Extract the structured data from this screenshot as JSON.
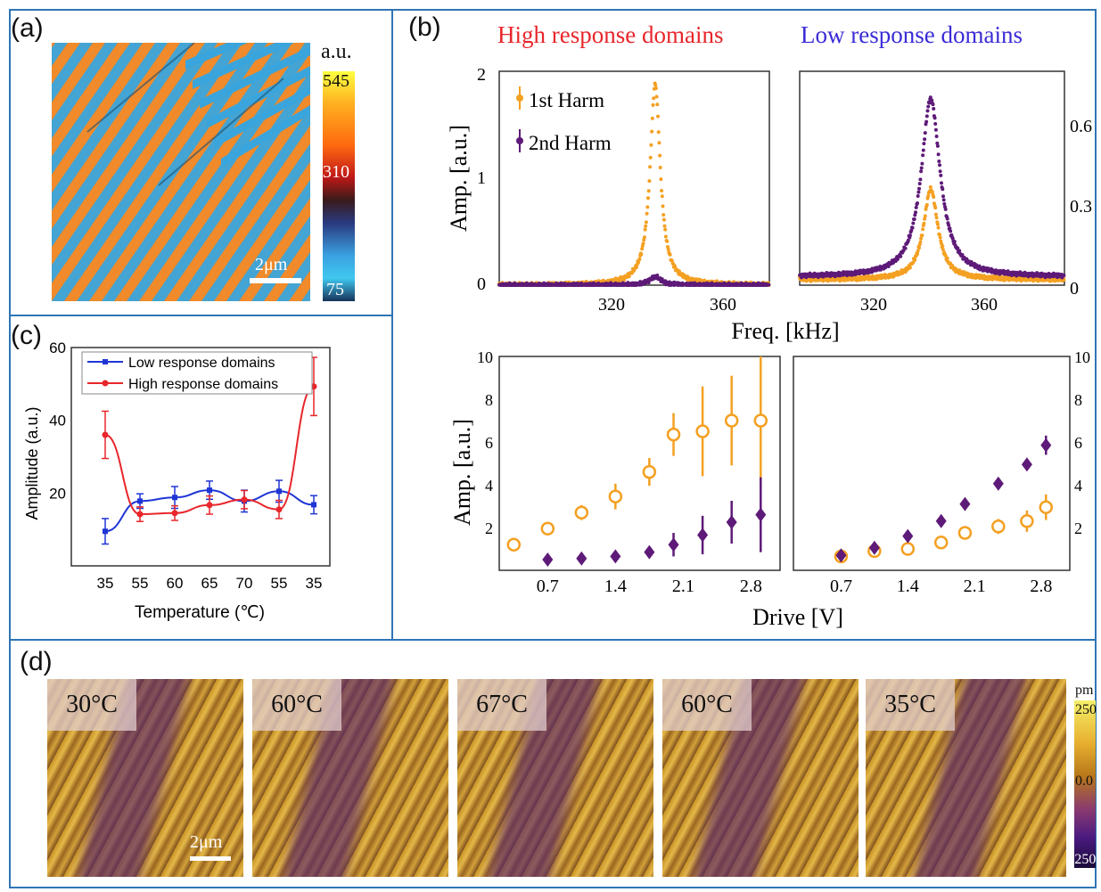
{
  "panel_labels": {
    "a": "(a)",
    "b": "(b)",
    "c": "(c)",
    "d": "(d)"
  },
  "panel_a": {
    "colorbar": {
      "unit": "a.u.",
      "max": "545",
      "mid": "310",
      "min": "75"
    },
    "scalebar": "2μm",
    "colors": {
      "domain_blue": "#3aa5dc",
      "domain_orange": "#f08a2a"
    }
  },
  "panel_b": {
    "title_high": "High response domains",
    "title_low": "Low response domains",
    "colors": {
      "high_title": "#e8262b",
      "low_title": "#3a2bd6",
      "harm1": "#f4a022",
      "harm2": "#5e1a78"
    },
    "legend": [
      "1st  Harm",
      "2nd Harm"
    ],
    "top_xlabel": "Freq. [kHz]",
    "top_ylabel": "Amp. [a.u.]",
    "top_left_yticks": [
      "2",
      "1",
      "0"
    ],
    "top_right_yticks": [
      "0.6",
      "0.3",
      "0"
    ],
    "top_xticks": [
      "320",
      "360"
    ],
    "bottom_xlabel": "Drive [V]",
    "bottom_ylabel": "Amp. [a.u.]",
    "bottom_yticks": [
      "10",
      "8",
      "6",
      "4",
      "2"
    ],
    "bottom_xticks": [
      "0.7",
      "1.4",
      "2.1",
      "2.8"
    ]
  },
  "panel_c": {
    "ylabel": "Amplitude (a.u.)",
    "xlabel": "Temperature (℃)",
    "legend": [
      "Low response domains",
      "High response domains"
    ],
    "colors": {
      "low": "#1f35d6",
      "high": "#e8262b"
    }
  },
  "panel_d": {
    "temps": [
      "30°C",
      "60°C",
      "67°C",
      "60°C",
      "35°C"
    ],
    "scalebar": "2μm",
    "colorbar": {
      "unit": "pm",
      "max": "250",
      "mid": "0.0",
      "min": "-250"
    }
  },
  "chart_data": [
    {
      "type": "scatter",
      "panel": "b-top-left",
      "title": "High response domains",
      "xlabel": "Freq. [kHz]",
      "ylabel": "Amp. [a.u.]",
      "xlim": [
        283,
        380
      ],
      "ylim": [
        0,
        2
      ],
      "xticks": [
        320,
        360
      ],
      "yticks": [
        0,
        1,
        2
      ],
      "series": [
        {
          "name": "1st  Harm",
          "peak_x": 339,
          "peak_y": 1.88,
          "baseline": 0.0
        },
        {
          "name": "2nd Harm",
          "peak_x": 339,
          "peak_y": 0.08,
          "baseline": 0.0
        }
      ]
    },
    {
      "type": "scatter",
      "panel": "b-top-right",
      "title": "Low response domains",
      "xlabel": "Freq. [kHz]",
      "xlim": [
        283,
        380
      ],
      "ylim": [
        0,
        0.78
      ],
      "xticks": [
        320,
        360
      ],
      "yticks": [
        0,
        0.3,
        0.6
      ],
      "series": [
        {
          "peak_x": 331,
          "peak_y": 0.35,
          "baseline": 0.02
        },
        {
          "peak_x": 331,
          "peak_y": 0.68,
          "baseline": 0.03
        }
      ]
    },
    {
      "type": "scatter",
      "panel": "b-bottom-left",
      "xlabel": "Drive [V]",
      "ylabel": "Amp. [a.u.]",
      "xlim": [
        0.2,
        3.1
      ],
      "ylim": [
        0,
        10
      ],
      "xticks": [
        0.7,
        1.4,
        2.1,
        2.8
      ],
      "yticks": [
        2,
        4,
        6,
        8,
        10
      ],
      "series": [
        {
          "x": [
            0.35,
            0.7,
            1.05,
            1.4,
            1.75,
            2.0,
            2.3,
            2.6,
            2.9
          ],
          "y": [
            1.2,
            1.95,
            2.7,
            3.45,
            4.6,
            6.35,
            6.5,
            7.0,
            7.0
          ],
          "err": [
            0.1,
            0.15,
            0.35,
            0.6,
            0.65,
            1.0,
            2.1,
            2.1,
            3.0
          ]
        },
        {
          "x": [
            0.7,
            1.05,
            1.4,
            1.75,
            2.0,
            2.3,
            2.6,
            2.9
          ],
          "y": [
            0.5,
            0.55,
            0.65,
            0.85,
            1.2,
            1.65,
            2.25,
            2.6
          ],
          "err": [
            0.1,
            0.1,
            0.1,
            0.15,
            0.55,
            0.9,
            1.0,
            1.75
          ]
        }
      ]
    },
    {
      "type": "scatter",
      "panel": "b-bottom-right",
      "xlabel": "Drive [V]",
      "xlim": [
        0.2,
        3.1
      ],
      "ylim": [
        0,
        10
      ],
      "xticks": [
        0.7,
        1.4,
        2.1,
        2.8
      ],
      "yticks": [
        2,
        4,
        6,
        8,
        10
      ],
      "series": [
        {
          "x": [
            0.7,
            1.05,
            1.4,
            1.75,
            2.0,
            2.35,
            2.65,
            2.85
          ],
          "y": [
            0.65,
            0.9,
            1.0,
            1.3,
            1.75,
            2.05,
            2.3,
            2.95
          ],
          "err": [
            0.1,
            0.1,
            0.2,
            0.3,
            0.25,
            0.35,
            0.5,
            0.6
          ]
        },
        {
          "x": [
            0.7,
            1.05,
            1.4,
            1.75,
            2.0,
            2.35,
            2.65,
            2.85
          ],
          "y": [
            0.7,
            1.05,
            1.6,
            2.3,
            3.1,
            4.05,
            4.95,
            5.85
          ],
          "err": [
            0.1,
            0.1,
            0.1,
            0.15,
            0.15,
            0.2,
            0.2,
            0.45
          ]
        }
      ]
    },
    {
      "type": "line",
      "panel": "c",
      "xlabel": "Temperature (℃)",
      "ylabel": "Amplitude (a.u.)",
      "categories": [
        "35",
        "55",
        "60",
        "65",
        "70",
        "55",
        "35"
      ],
      "ylim": [
        0,
        60
      ],
      "yticks": [
        20,
        40,
        60
      ],
      "legend_position": "top-left",
      "series": [
        {
          "name": "Low response domains",
          "values": [
            9.5,
            17.8,
            18.8,
            20.8,
            17.8,
            20.5,
            16.8
          ],
          "err": [
            3.5,
            2.0,
            3.0,
            2.5,
            3.0,
            3.0,
            2.5
          ]
        },
        {
          "name": "High response domains",
          "values": [
            36,
            14.2,
            14.5,
            16.7,
            18.2,
            15.5,
            49.3
          ],
          "err": [
            6.5,
            2.0,
            2.0,
            2.5,
            2.5,
            2.5,
            8.0
          ]
        }
      ]
    }
  ]
}
